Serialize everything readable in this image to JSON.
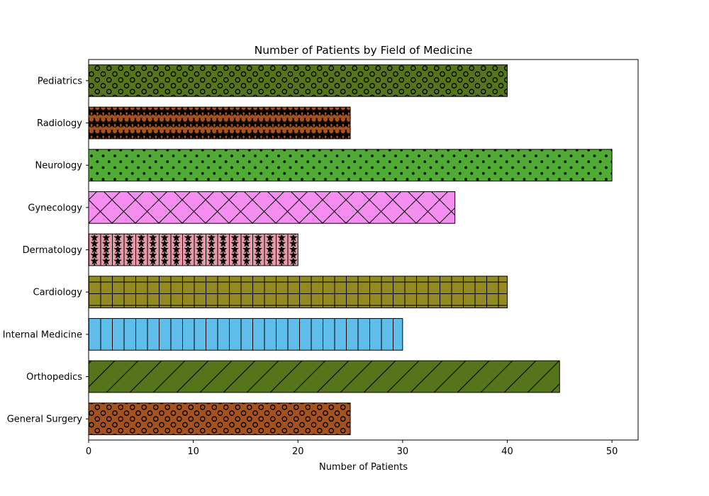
{
  "chart_data": {
    "type": "bar",
    "orientation": "horizontal",
    "title": "Number of Patients by Field of Medicine",
    "xlabel": "Number of Patients",
    "ylabel": "",
    "xlim": [
      0,
      52.5
    ],
    "xticks": [
      0,
      10,
      20,
      30,
      40,
      50
    ],
    "grid": false,
    "legend": "none",
    "categories": [
      "General Surgery",
      "Orthopedics",
      "Internal Medicine",
      "Cardiology",
      "Dermatology",
      "Gynecology",
      "Neurology",
      "Radiology",
      "Pediatrics"
    ],
    "values": [
      25,
      45,
      30,
      40,
      20,
      35,
      50,
      25,
      40
    ],
    "colors": [
      "#a5521f",
      "#56741a",
      "#5fbde9",
      "#948a24",
      "#e99aa8",
      "#f68ef2",
      "#4fac33",
      "#a5521f",
      "#56741a"
    ],
    "hatches": [
      "circles",
      "diagonal",
      "vertical",
      "grid",
      "stars-vertical",
      "cross",
      "dots",
      "stars-circles",
      "circles"
    ]
  }
}
